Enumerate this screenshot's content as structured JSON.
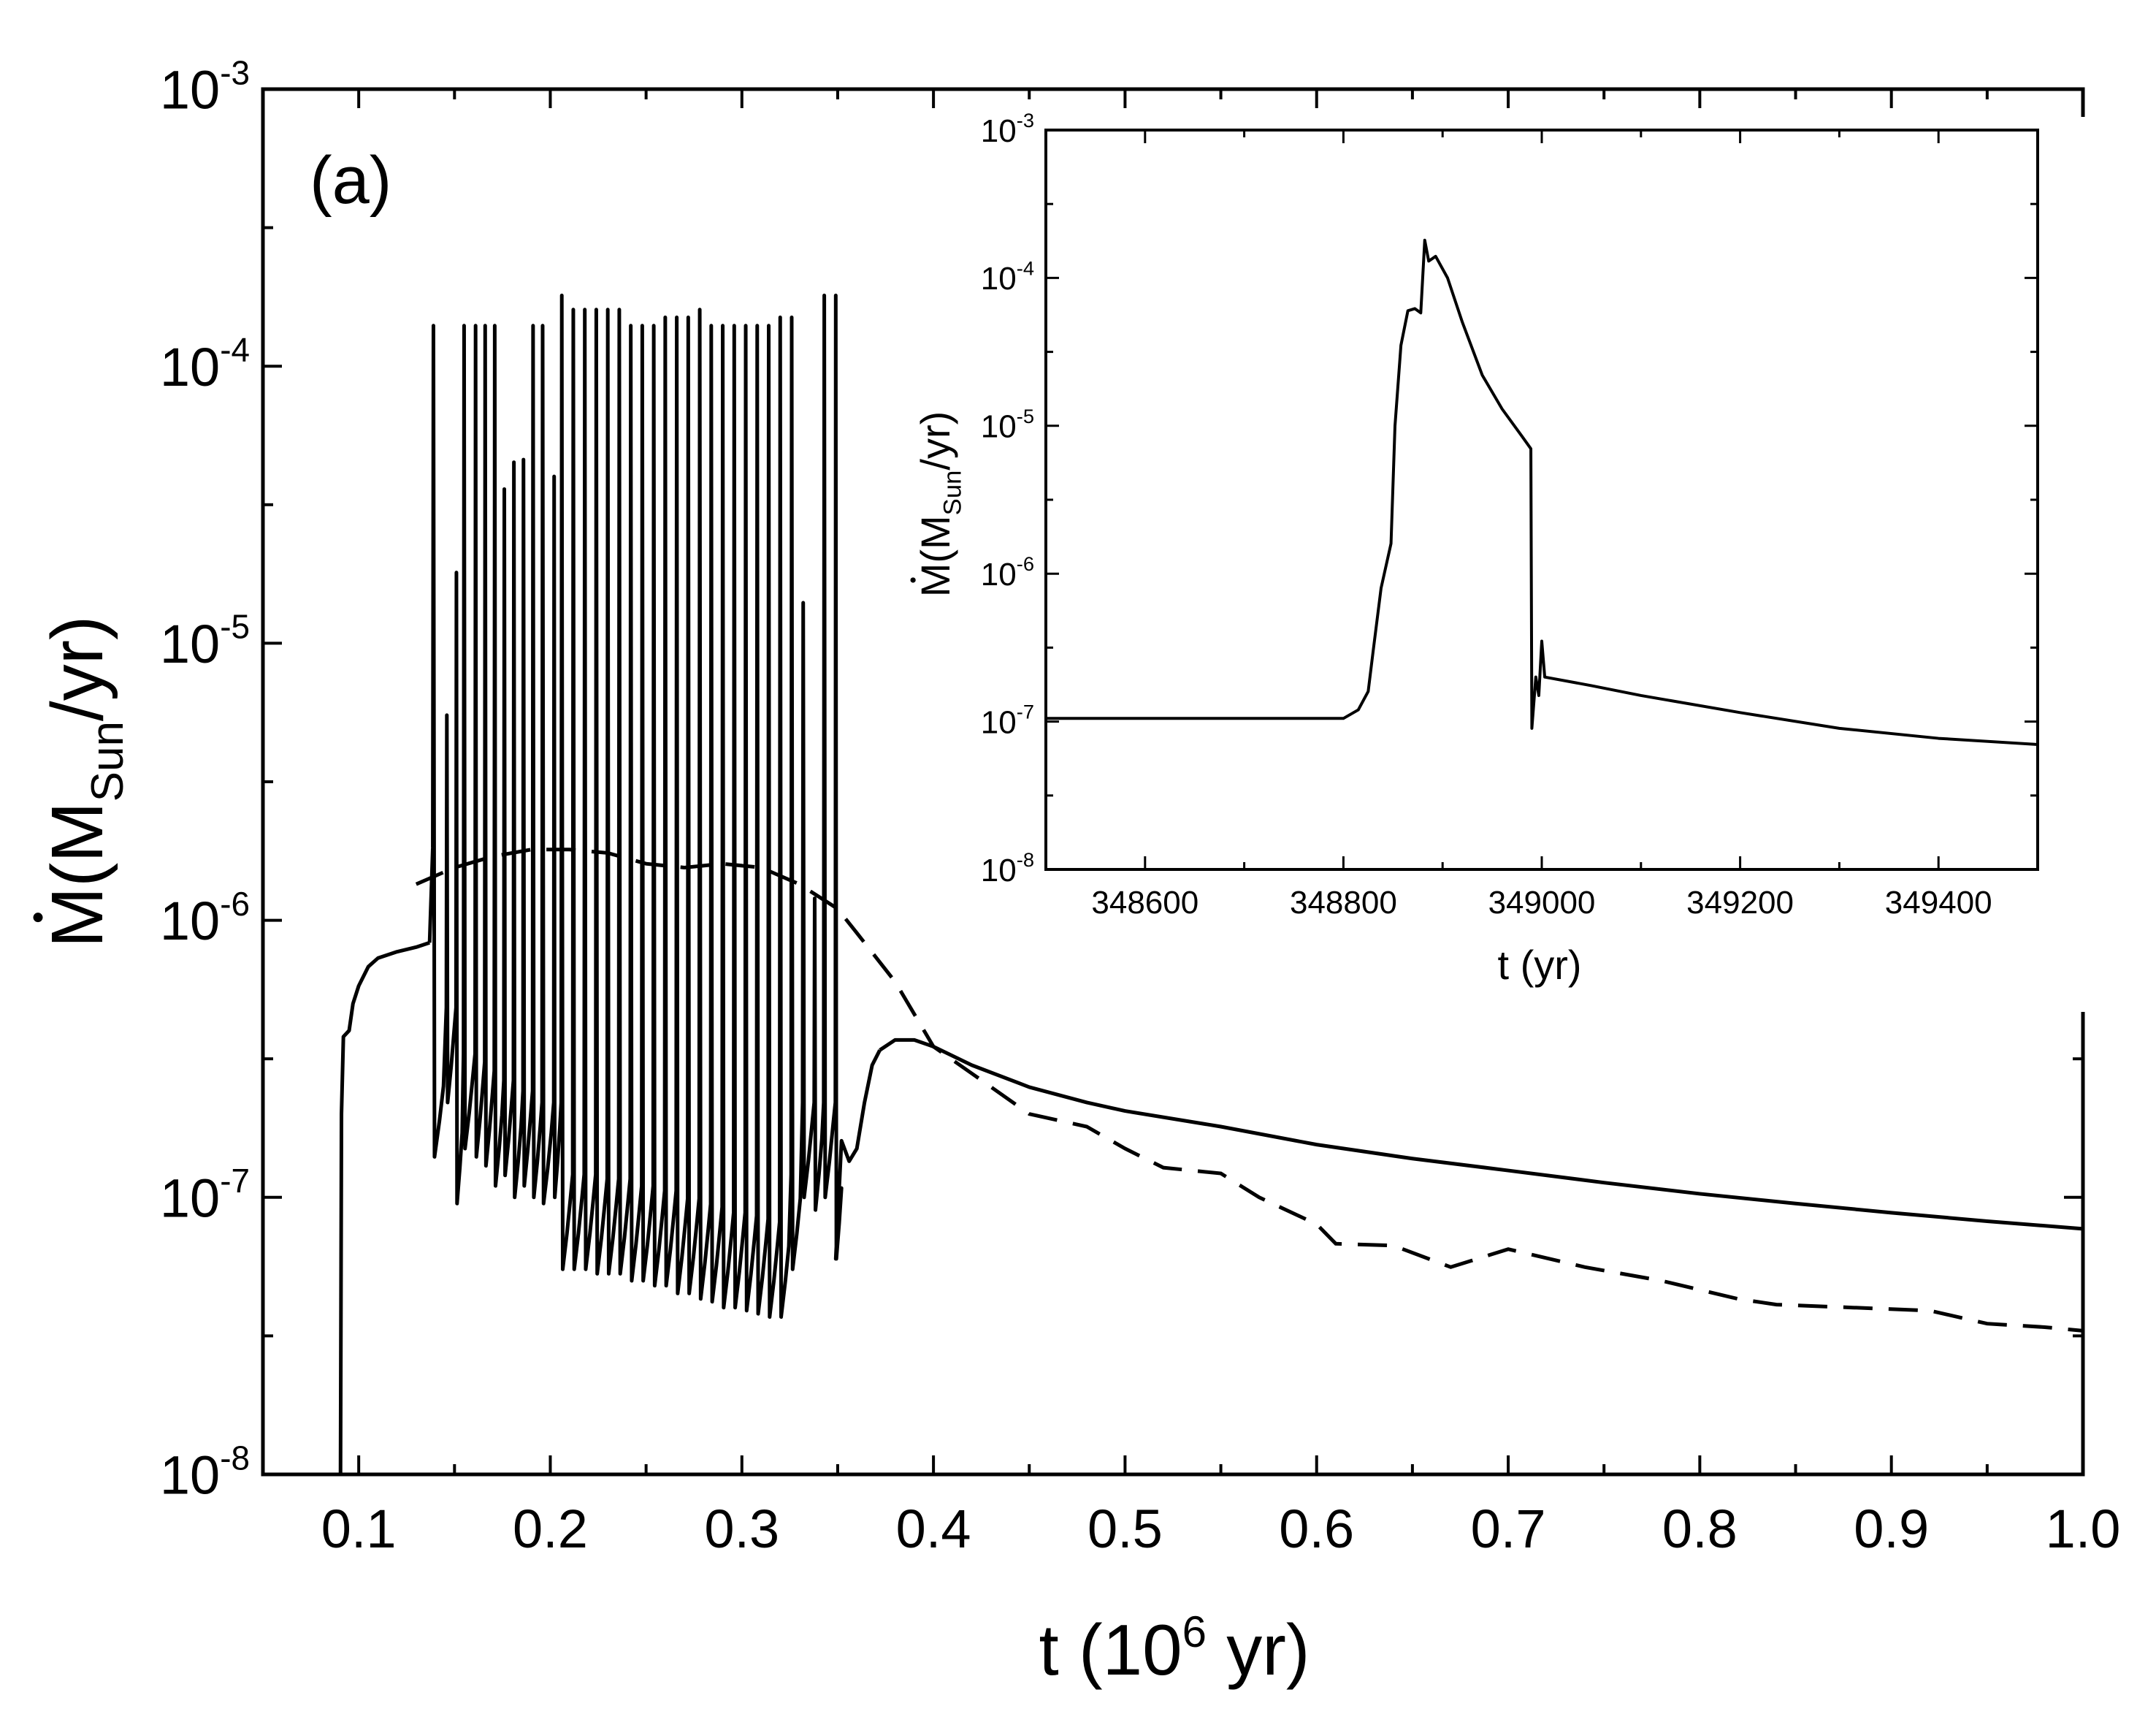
{
  "chart_data": [
    {
      "id": "main",
      "type": "line",
      "panel_label": "(a)",
      "xlabel": {
        "base": "t (10",
        "sup": "6",
        "rest": " yr)"
      },
      "ylabel": {
        "lead": "(M",
        "sub": "Sun",
        "rest": "/yr)"
      },
      "xlim": [
        0.05,
        1.0
      ],
      "ylim_log10": [
        -8,
        -3
      ],
      "yscale": "log",
      "x_ticks": [
        0.1,
        0.2,
        0.3,
        0.4,
        0.5,
        0.6,
        0.7,
        0.8,
        0.9,
        1.0
      ],
      "x_tick_labels": [
        "0.1",
        "0.2",
        "0.3",
        "0.4",
        "0.5",
        "0.6",
        "0.7",
        "0.8",
        "0.9",
        "1.0"
      ],
      "y_tick_exponents": [
        -8,
        -7,
        -6,
        -5,
        -4,
        -3
      ],
      "y_tick_labels": [
        {
          "base": "10",
          "exp": "-8"
        },
        {
          "base": "10",
          "exp": "-7"
        },
        {
          "base": "10",
          "exp": "-6"
        },
        {
          "base": "10",
          "exp": "-5"
        },
        {
          "base": "10",
          "exp": "-4"
        },
        {
          "base": "10",
          "exp": "-3"
        }
      ],
      "series": [
        {
          "style": "solid",
          "segments": [
            [
              [
                0.0905,
                1e-08
              ],
              [
                0.091,
                2e-07
              ],
              [
                0.092,
                3.8e-07
              ],
              [
                0.095,
                4e-07
              ],
              [
                0.097,
                5e-07
              ],
              [
                0.1,
                5.8e-07
              ],
              [
                0.105,
                6.8e-07
              ],
              [
                0.11,
                7.3e-07
              ],
              [
                0.12,
                7.7e-07
              ],
              [
                0.13,
                8e-07
              ],
              [
                0.137,
                8.3e-07
              ]
            ],
            [
              [
                0.372,
                3.4e-07
              ],
              [
                0.38,
                3.7e-07
              ],
              [
                0.39,
                3.7e-07
              ],
              [
                0.4,
                3.5e-07
              ],
              [
                0.42,
                3e-07
              ],
              [
                0.45,
                2.5e-07
              ],
              [
                0.48,
                2.2e-07
              ],
              [
                0.5,
                2.05e-07
              ],
              [
                0.55,
                1.8e-07
              ],
              [
                0.6,
                1.55e-07
              ],
              [
                0.65,
                1.38e-07
              ],
              [
                0.7,
                1.25e-07
              ],
              [
                0.75,
                1.13e-07
              ],
              [
                0.8,
                1.03e-07
              ],
              [
                0.85,
                9.5e-08
              ],
              [
                0.9,
                8.8e-08
              ],
              [
                0.95,
                8.2e-08
              ],
              [
                1.0,
                7.7e-08
              ]
            ]
          ],
          "oscillation": {
            "outbursts": [
              {
                "t": 0.139,
                "peak": 0.00014,
                "base_after": 1.4e-07
              },
              {
                "t": 0.146,
                "peak": 5.5e-06,
                "base_after": 2.2e-07
              },
              {
                "t": 0.151,
                "peak": 1.8e-05,
                "base_after": 9.5e-08
              },
              {
                "t": 0.155,
                "peak": 0.00014,
                "base_after": 1.5e-07
              },
              {
                "t": 0.161,
                "peak": 0.00014,
                "base_after": 1.4e-07
              },
              {
                "t": 0.166,
                "peak": 0.00014,
                "base_after": 1.3e-07
              },
              {
                "t": 0.171,
                "peak": 0.00014,
                "base_after": 1.1e-07
              },
              {
                "t": 0.176,
                "peak": 3.6e-05,
                "base_after": 1.2e-07
              },
              {
                "t": 0.181,
                "peak": 4.5e-05,
                "base_after": 1e-07
              },
              {
                "t": 0.186,
                "peak": 4.6e-05,
                "base_after": 1.1e-07
              },
              {
                "t": 0.191,
                "peak": 0.00014,
                "base_after": 1e-07
              },
              {
                "t": 0.196,
                "peak": 0.00014,
                "base_after": 9.5e-08
              },
              {
                "t": 0.202,
                "peak": 4e-05,
                "base_after": 1e-07
              },
              {
                "t": 0.206,
                "peak": 0.00018,
                "base_after": 5.5e-08
              },
              {
                "t": 0.212,
                "peak": 0.00016,
                "base_after": 5.5e-08
              },
              {
                "t": 0.218,
                "peak": 0.00016,
                "base_after": 5.5e-08
              },
              {
                "t": 0.224,
                "peak": 0.00016,
                "base_after": 5.3e-08
              },
              {
                "t": 0.23,
                "peak": 0.00016,
                "base_after": 5.3e-08
              },
              {
                "t": 0.236,
                "peak": 0.00016,
                "base_after": 5.3e-08
              },
              {
                "t": 0.242,
                "peak": 0.00014,
                "base_after": 5e-08
              },
              {
                "t": 0.248,
                "peak": 0.00014,
                "base_after": 5e-08
              },
              {
                "t": 0.254,
                "peak": 0.00014,
                "base_after": 4.8e-08
              },
              {
                "t": 0.26,
                "peak": 0.00015,
                "base_after": 4.8e-08
              },
              {
                "t": 0.266,
                "peak": 0.00015,
                "base_after": 4.5e-08
              },
              {
                "t": 0.272,
                "peak": 0.00015,
                "base_after": 4.5e-08
              },
              {
                "t": 0.278,
                "peak": 0.00016,
                "base_after": 4.3e-08
              },
              {
                "t": 0.284,
                "peak": 0.00014,
                "base_after": 4.2e-08
              },
              {
                "t": 0.29,
                "peak": 0.00014,
                "base_after": 4e-08
              },
              {
                "t": 0.296,
                "peak": 0.00014,
                "base_after": 4e-08
              },
              {
                "t": 0.302,
                "peak": 0.00014,
                "base_after": 3.9e-08
              },
              {
                "t": 0.308,
                "peak": 0.00014,
                "base_after": 3.8e-08
              },
              {
                "t": 0.314,
                "peak": 0.00014,
                "base_after": 3.7e-08
              },
              {
                "t": 0.32,
                "peak": 0.00015,
                "base_after": 3.7e-08
              },
              {
                "t": 0.326,
                "peak": 0.00015,
                "base_after": 5.5e-08
              },
              {
                "t": 0.332,
                "peak": 1.4e-05,
                "base_after": 1e-07
              },
              {
                "t": 0.338,
                "peak": 1.2e-06,
                "base_after": 9e-08
              },
              {
                "t": 0.343,
                "peak": 0.00018,
                "base_after": 1e-07
              },
              {
                "t": 0.349,
                "peak": 0.00018,
                "base_after": 6e-08
              }
            ],
            "tail": [
              [
                0.349,
                6e-08
              ],
              [
                0.352,
                1.6e-07
              ],
              [
                0.356,
                1.35e-07
              ],
              [
                0.36,
                1.5e-07
              ],
              [
                0.364,
                2.2e-07
              ],
              [
                0.368,
                3e-07
              ],
              [
                0.372,
                3.4e-07
              ]
            ]
          }
        },
        {
          "style": "dashed",
          "points": [
            [
              0.13,
              1.35e-06
            ],
            [
              0.15,
              1.55e-06
            ],
            [
              0.17,
              1.7e-06
            ],
            [
              0.19,
              1.8e-06
            ],
            [
              0.21,
              1.8e-06
            ],
            [
              0.23,
              1.75e-06
            ],
            [
              0.25,
              1.6e-06
            ],
            [
              0.27,
              1.55e-06
            ],
            [
              0.29,
              1.6e-06
            ],
            [
              0.31,
              1.55e-06
            ],
            [
              0.33,
              1.35e-06
            ],
            [
              0.35,
              1.1e-06
            ],
            [
              0.36,
              9e-07
            ],
            [
              0.38,
              6e-07
            ],
            [
              0.4,
              3.5e-07
            ],
            [
              0.42,
              2.8e-07
            ],
            [
              0.45,
              2e-07
            ],
            [
              0.48,
              1.8e-07
            ],
            [
              0.5,
              1.5e-07
            ],
            [
              0.52,
              1.28e-07
            ],
            [
              0.55,
              1.22e-07
            ],
            [
              0.57,
              1e-07
            ],
            [
              0.6,
              8e-08
            ],
            [
              0.61,
              6.8e-08
            ],
            [
              0.64,
              6.7e-08
            ],
            [
              0.67,
              5.6e-08
            ],
            [
              0.7,
              6.5e-08
            ],
            [
              0.74,
              5.6e-08
            ],
            [
              0.78,
              5e-08
            ],
            [
              0.82,
              4.3e-08
            ],
            [
              0.84,
              4.1e-08
            ],
            [
              0.88,
              4e-08
            ],
            [
              0.92,
              3.9e-08
            ],
            [
              0.95,
              3.5e-08
            ],
            [
              0.98,
              3.4e-08
            ],
            [
              1.0,
              3.3e-08
            ]
          ]
        }
      ]
    },
    {
      "id": "inset",
      "type": "line",
      "xlabel": {
        "text": "t (yr)"
      },
      "ylabel": {
        "lead": "(M",
        "sub": "Sun",
        "rest": "/yr)"
      },
      "xlim": [
        348500,
        349500
      ],
      "ylim_log10": [
        -8,
        -3
      ],
      "yscale": "log",
      "x_ticks": [
        348600,
        348800,
        349000,
        349200,
        349400
      ],
      "x_tick_labels": [
        "348600",
        "348800",
        "349000",
        "349200",
        "349400"
      ],
      "y_tick_exponents": [
        -8,
        -7,
        -6,
        -5,
        -4,
        -3
      ],
      "y_tick_labels": [
        {
          "base": "10",
          "exp": "-8"
        },
        {
          "base": "10",
          "exp": "-7"
        },
        {
          "base": "10",
          "exp": "-6"
        },
        {
          "base": "10",
          "exp": "-5"
        },
        {
          "base": "10",
          "exp": "-4"
        },
        {
          "base": "10",
          "exp": "-3"
        }
      ],
      "series": [
        {
          "style": "solid",
          "points": [
            [
              348500,
              1.05e-07
            ],
            [
              348800,
              1.05e-07
            ],
            [
              348815,
              1.2e-07
            ],
            [
              348825,
              1.6e-07
            ],
            [
              348830,
              3e-07
            ],
            [
              348838,
              8e-07
            ],
            [
              348848,
              1.6e-06
            ],
            [
              348852,
              1e-05
            ],
            [
              348858,
              3.5e-05
            ],
            [
              348865,
              6e-05
            ],
            [
              348872,
              6.2e-05
            ],
            [
              348878,
              5.8e-05
            ],
            [
              348882,
              0.00018
            ],
            [
              348886,
              0.00013
            ],
            [
              348893,
              0.00014
            ],
            [
              348905,
              0.0001
            ],
            [
              348920,
              5e-05
            ],
            [
              348940,
              2.2e-05
            ],
            [
              348960,
              1.3e-05
            ],
            [
              348980,
              8.5e-06
            ],
            [
              348989,
              7e-06
            ],
            [
              348990,
              9e-08
            ],
            [
              348994,
              2e-07
            ],
            [
              348997,
              1.5e-07
            ],
            [
              349000,
              3.5e-07
            ],
            [
              349003,
              2e-07
            ],
            [
              349050,
              1.75e-07
            ],
            [
              349100,
              1.5e-07
            ],
            [
              349200,
              1.15e-07
            ],
            [
              349300,
              9e-08
            ],
            [
              349400,
              7.7e-08
            ],
            [
              349500,
              7e-08
            ]
          ]
        }
      ]
    }
  ],
  "mdot_symbol": "M"
}
